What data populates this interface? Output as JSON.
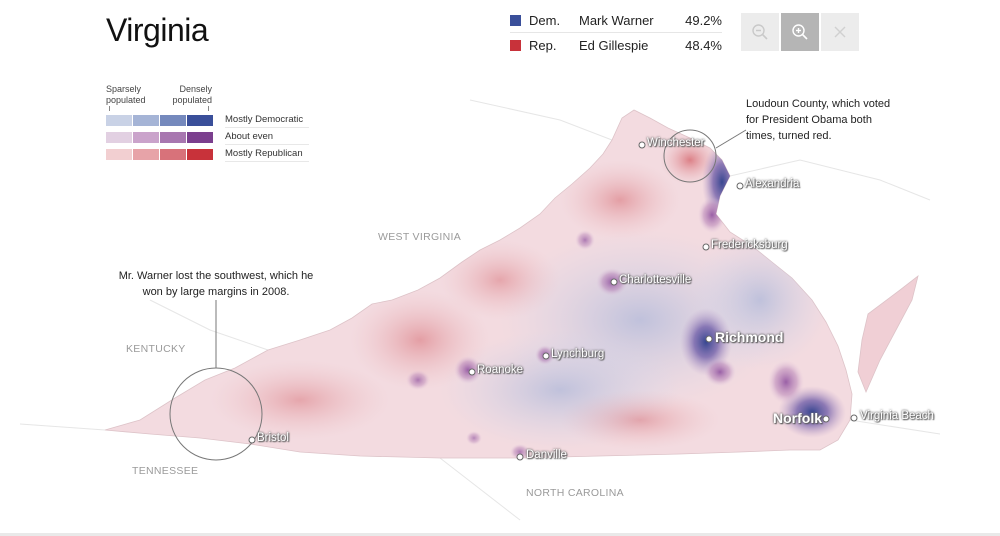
{
  "title": "Virginia",
  "results": [
    {
      "party": "Dem.",
      "candidate": "Mark Warner",
      "percent": "49.2%",
      "color": "#3a4f9a"
    },
    {
      "party": "Rep.",
      "candidate": "Ed Gillespie",
      "percent": "48.4%",
      "color": "#c8323a"
    }
  ],
  "zoom_controls": {
    "zoom_out_icon": "zoom-out-icon",
    "zoom_in_icon": "zoom-in-icon",
    "close_icon": "close-icon"
  },
  "legend": {
    "sparse_label": "Sparsely\npopulated",
    "dense_label": "Densely\npopulated",
    "rows": [
      {
        "label": "Mostly Democratic",
        "colors": [
          "#c9d2e6",
          "#a5b4d6",
          "#7589bd",
          "#3a4f9a"
        ]
      },
      {
        "label": "About even",
        "colors": [
          "#e2d0e2",
          "#caa3cb",
          "#a877b0",
          "#7b3f8e"
        ]
      },
      {
        "label": "Mostly Republican",
        "colors": [
          "#f2cfd1",
          "#e7a3a8",
          "#d8727a",
          "#c8323a"
        ]
      }
    ]
  },
  "neighbors": {
    "west_virginia": "WEST VIRGINIA",
    "kentucky": "KENTUCKY",
    "tennessee": "TENNESSEE",
    "north_carolina": "NORTH CAROLINA"
  },
  "annotations": {
    "loudoun": "Loudoun County, which voted\nfor President Obama both\ntimes, turned red.",
    "southwest": "Mr. Warner lost the southwest, which he\nwon by large margins in 2008."
  },
  "cities": {
    "winchester": "Winchester",
    "alexandria": "Alexandria",
    "fredericksburg": "Fredericksburg",
    "charlottesville": "Charlottesville",
    "richmond": "Richmond",
    "lynchburg": "Lynchburg",
    "roanoke": "Roanoke",
    "norfolk": "Norfolk",
    "virginia_beach": "Virginia Beach",
    "danville": "Danville",
    "bristol": "Bristol"
  }
}
